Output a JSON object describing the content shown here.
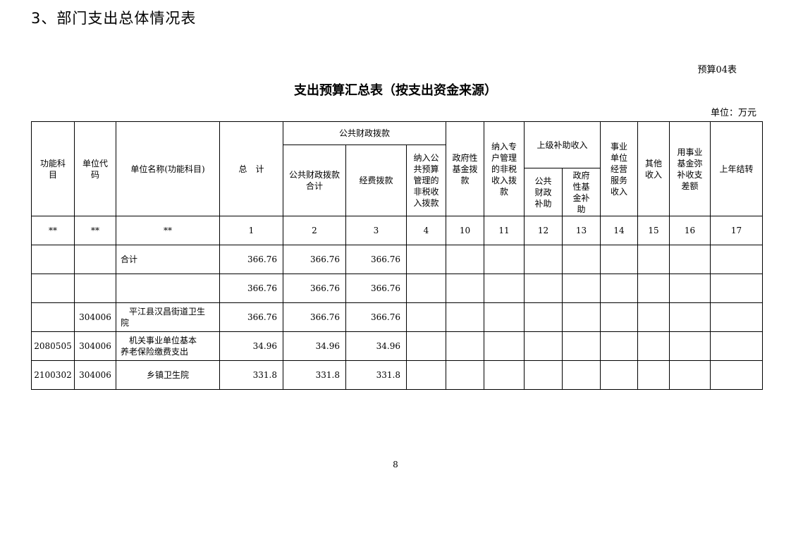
{
  "heading": "3、部门支出总体情况表",
  "table_no": "预算04表",
  "title": "支出预算汇总表（按支出资金来源）",
  "unit": "单位：万元",
  "headers": {
    "func": "功能科\n目",
    "code": "单位代\n码",
    "name": "单位名称(功能科目)",
    "total": "总　计",
    "public_group": "公共财政拨款",
    "public_total": "公共财政拨款\n合计",
    "funding": "经费拨款",
    "nontax_public": "纳入公\n共预算\n管理的\n非税收\n入拨款",
    "gov_fund": "政府性\n基金拨\n款",
    "nontax_special": "纳入专\n户管理\n的非税\n收入拨\n款",
    "upper_group": "上级补助收入",
    "upper_public": "公共\n财政\n补助",
    "upper_gov": "政府\n性基\n金补\n助",
    "business": "事业\n单位\n经营\n服务\n收入",
    "other": "其他\n收入",
    "fund_offset": "用事业\n基金弥\n补收支\n差额",
    "carryover": "上年结转"
  },
  "index_row": [
    "**",
    "**",
    "**",
    "1",
    "2",
    "3",
    "4",
    "10",
    "11",
    "12",
    "13",
    "14",
    "15",
    "16",
    "17"
  ],
  "rows": [
    {
      "func": "",
      "code": "",
      "name": "合计",
      "total": "366.76",
      "public_total": "366.76",
      "funding": "366.76"
    },
    {
      "func": "",
      "code": "",
      "name": "",
      "total": "366.76",
      "public_total": "366.76",
      "funding": "366.76"
    },
    {
      "func": "",
      "code": "304006",
      "name": "　平江县汉昌街道卫生\n院",
      "total": "366.76",
      "public_total": "366.76",
      "funding": "366.76"
    },
    {
      "func": "2080505",
      "code": "304006",
      "name": "　机关事业单位基本\n养老保险缴费支出",
      "total": "34.96",
      "public_total": "34.96",
      "funding": "34.96"
    },
    {
      "func": "2100302",
      "code": "304006",
      "name": "乡镇卫生院",
      "total": "331.8",
      "public_total": "331.8",
      "funding": "331.8"
    }
  ],
  "page_number": "8"
}
